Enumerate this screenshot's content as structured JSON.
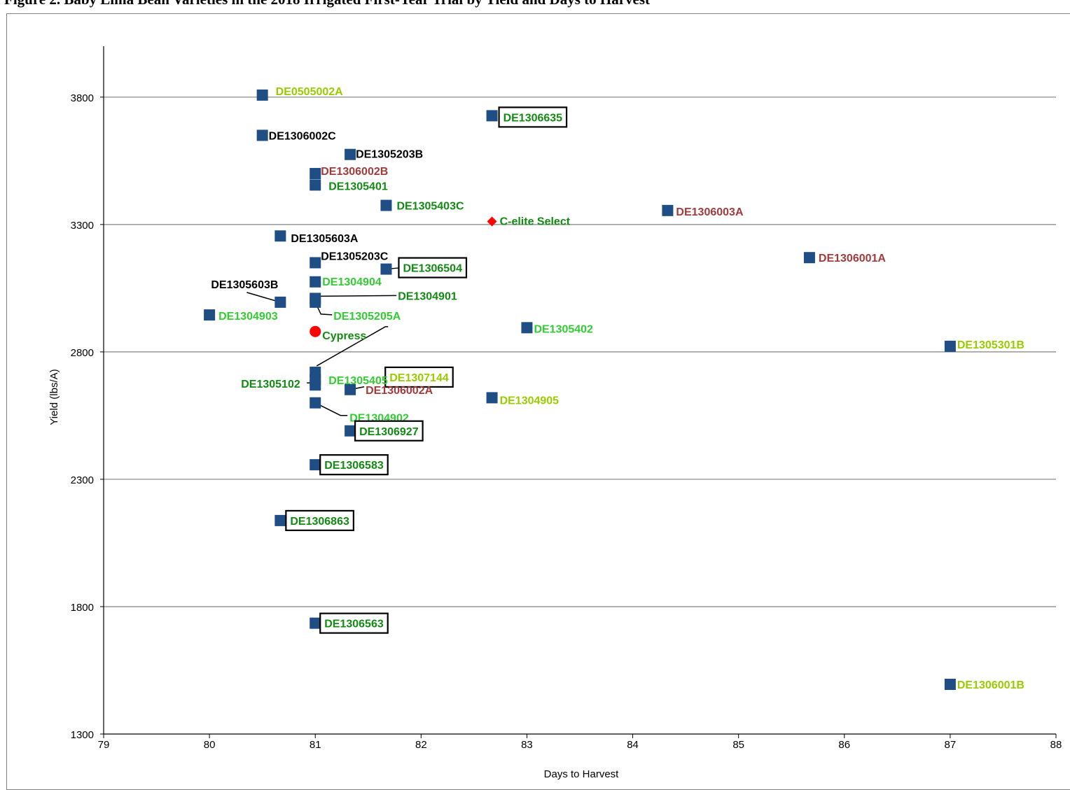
{
  "figure": {
    "title": "Figure 2. Baby Lima Bean Varieties in the 2018 Irrigated First-Year Trial by Yield and Days to Harvest"
  },
  "colors": {
    "square": "#1f4e85",
    "black_label": "#000000",
    "dark_green": "#138a13",
    "light_green": "#33cc33",
    "yellow_green": "#99cc00",
    "brown": "#a33b3b",
    "red": "#ff0000",
    "grid": "#808080"
  },
  "chart_data": {
    "type": "scatter",
    "title": "Figure 2. Baby Lima Bean Varieties in the 2018 Irrigated First-Year Trial by Yield and Days to Harvest",
    "xlabel": "Days to Harvest",
    "ylabel": "Yield (lbs/A)",
    "xlim": [
      79,
      88
    ],
    "ylim": [
      1300,
      4000
    ],
    "xticks": [
      79,
      80,
      81,
      82,
      83,
      84,
      85,
      86,
      87,
      88
    ],
    "yticks": [
      1300,
      1800,
      2300,
      2800,
      3300,
      3800
    ],
    "grid": "horizontal",
    "points": [
      {
        "name": "DE0505002A",
        "x": 80.5,
        "y": 3808,
        "marker": "square",
        "label_color": "yellow_green",
        "boxed": false
      },
      {
        "name": "DE1306635",
        "x": 82.67,
        "y": 3727,
        "marker": "square",
        "label_color": "dark_green",
        "boxed": true
      },
      {
        "name": "DE1306002C",
        "x": 80.5,
        "y": 3650,
        "marker": "square",
        "label_color": "black_label",
        "boxed": false
      },
      {
        "name": "DE1305203B",
        "x": 81.33,
        "y": 3575,
        "marker": "square",
        "label_color": "black_label",
        "boxed": false
      },
      {
        "name": "DE1306002B",
        "x": 81.0,
        "y": 3500,
        "marker": "square",
        "label_color": "brown",
        "boxed": false
      },
      {
        "name": "DE1305401",
        "x": 81.0,
        "y": 3455,
        "marker": "square",
        "label_color": "dark_green",
        "boxed": false
      },
      {
        "name": "DE1305403C",
        "x": 81.67,
        "y": 3375,
        "marker": "square",
        "label_color": "dark_green",
        "boxed": false
      },
      {
        "name": "DE1306003A",
        "x": 84.33,
        "y": 3355,
        "marker": "square",
        "label_color": "brown",
        "boxed": false
      },
      {
        "name": "C-elite Select",
        "x": 82.67,
        "y": 3312,
        "marker": "diamond",
        "label_color": "dark_green",
        "boxed": false
      },
      {
        "name": "DE1305603A",
        "x": 80.67,
        "y": 3255,
        "marker": "square",
        "label_color": "black_label",
        "boxed": false
      },
      {
        "name": "DE1306001A",
        "x": 85.67,
        "y": 3170,
        "marker": "square",
        "label_color": "brown",
        "boxed": false
      },
      {
        "name": "DE1305203C",
        "x": 81.0,
        "y": 3150,
        "marker": "square",
        "label_color": "black_label",
        "boxed": false
      },
      {
        "name": "DE1306504",
        "x": 81.67,
        "y": 3125,
        "marker": "square",
        "label_color": "dark_green",
        "boxed": true
      },
      {
        "name": "DE1304904",
        "x": 81.0,
        "y": 3075,
        "marker": "square",
        "label_color": "light_green",
        "boxed": false
      },
      {
        "name": "DE1304901",
        "x": 81.0,
        "y": 3010,
        "marker": "square",
        "label_color": "dark_green",
        "boxed": false
      },
      {
        "name": "DE1305603B",
        "x": 80.67,
        "y": 2995,
        "marker": "square",
        "label_color": "black_label",
        "boxed": false
      },
      {
        "name": "DE1305205A",
        "x": 81.0,
        "y": 2995,
        "marker": "square",
        "label_color": "light_green",
        "boxed": false
      },
      {
        "name": "DE1304903",
        "x": 80.0,
        "y": 2945,
        "marker": "square",
        "label_color": "light_green",
        "boxed": false
      },
      {
        "name": "DE1305402",
        "x": 83.0,
        "y": 2895,
        "marker": "square",
        "label_color": "light_green",
        "boxed": false
      },
      {
        "name": "Cypress",
        "x": 81.0,
        "y": 2880,
        "marker": "circle",
        "label_color": "dark_green",
        "boxed": false
      },
      {
        "name": "DE1305301B",
        "x": 87.0,
        "y": 2822,
        "marker": "square",
        "label_color": "yellow_green",
        "boxed": false
      },
      {
        "name": "DE1307144",
        "x": 81.0,
        "y": 2690,
        "marker": "square",
        "label_color": "yellow_green",
        "boxed": true
      },
      {
        "name": "DE1305102",
        "x": 81.0,
        "y": 2670,
        "marker": "square",
        "label_color": "dark_green",
        "boxed": false
      },
      {
        "name": "DE1305405",
        "x": 81.0,
        "y": 2720,
        "marker": "square",
        "label_color": "light_green",
        "boxed": false
      },
      {
        "name": "DE1306002A",
        "x": 81.33,
        "y": 2652,
        "marker": "square",
        "label_color": "brown",
        "boxed": false
      },
      {
        "name": "DE1304905",
        "x": 82.67,
        "y": 2620,
        "marker": "square",
        "label_color": "yellow_green",
        "boxed": false
      },
      {
        "name": "DE1304902",
        "x": 81.0,
        "y": 2600,
        "marker": "square",
        "label_color": "light_green",
        "boxed": false
      },
      {
        "name": "DE1306927",
        "x": 81.33,
        "y": 2490,
        "marker": "square",
        "label_color": "dark_green",
        "boxed": true
      },
      {
        "name": "DE1306583",
        "x": 81.0,
        "y": 2357,
        "marker": "square",
        "label_color": "dark_green",
        "boxed": true
      },
      {
        "name": "DE1306863",
        "x": 80.67,
        "y": 2138,
        "marker": "square",
        "label_color": "dark_green",
        "boxed": true
      },
      {
        "name": "DE1306563",
        "x": 81.0,
        "y": 1735,
        "marker": "square",
        "label_color": "dark_green",
        "boxed": true
      },
      {
        "name": "DE1306001B",
        "x": 87.0,
        "y": 1495,
        "marker": "square",
        "label_color": "yellow_green",
        "boxed": false
      }
    ]
  }
}
